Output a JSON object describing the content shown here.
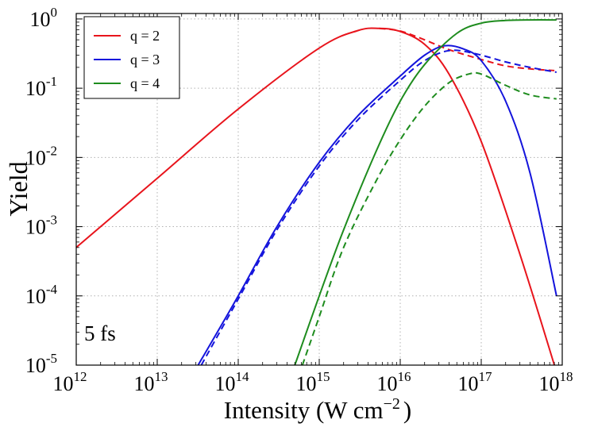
{
  "chart_data": {
    "type": "line",
    "xlabel": "Intensity (W cm",
    "xlabel_unit_exp": "−2",
    "xlabel_close": ")",
    "ylabel": "Yield",
    "x_scale": "log",
    "y_scale": "log",
    "xlim": [
      1000000000000.0,
      1e+18
    ],
    "ylim": [
      1e-05,
      1.2
    ],
    "grid": true,
    "legend_position": "top-left",
    "annotation": "5 fs",
    "x_ticks": [
      {
        "value": 1000000000000.0,
        "base": "10",
        "exp": "12"
      },
      {
        "value": 10000000000000.0,
        "base": "10",
        "exp": "13"
      },
      {
        "value": 100000000000000.0,
        "base": "10",
        "exp": "14"
      },
      {
        "value": 1000000000000000.0,
        "base": "10",
        "exp": "15"
      },
      {
        "value": 1e+16,
        "base": "10",
        "exp": "16"
      },
      {
        "value": 1e+17,
        "base": "10",
        "exp": "17"
      },
      {
        "value": 1e+18,
        "base": "10",
        "exp": "18"
      }
    ],
    "y_ticks": [
      {
        "value": 1e-05,
        "base": "10",
        "exp": "-5"
      },
      {
        "value": 0.0001,
        "base": "10",
        "exp": "-4"
      },
      {
        "value": 0.001,
        "base": "10",
        "exp": "-3"
      },
      {
        "value": 0.01,
        "base": "10",
        "exp": "-2"
      },
      {
        "value": 0.1,
        "base": "10",
        "exp": "-1"
      },
      {
        "value": 1,
        "base": "10",
        "exp": "0"
      }
    ],
    "series": [
      {
        "name": "q = 2",
        "color": "#e8141c",
        "style": "solid",
        "x": [
          1000000000000.0,
          10000000000000.0,
          100000000000000.0,
          1000000000000000.0,
          3000000000000000.0,
          5500000000000000.0,
          1e+16,
          2e+16,
          4e+16,
          1e+17,
          3e+17,
          8e+17
        ],
        "y": [
          0.0005,
          0.005,
          0.05,
          0.38,
          0.68,
          0.73,
          0.66,
          0.43,
          0.16,
          0.017,
          0.0004,
          1e-05
        ]
      },
      {
        "name": "",
        "color": "#e8141c",
        "style": "dashed",
        "x": [
          5500000000000000.0,
          1e+16,
          2e+16,
          4e+16,
          1e+17,
          2e+17,
          4e+17,
          8e+17
        ],
        "y": [
          0.73,
          0.67,
          0.5,
          0.36,
          0.26,
          0.21,
          0.19,
          0.18
        ]
      },
      {
        "name": "q = 3",
        "color": "#1414dc",
        "style": "solid",
        "x": [
          32000000000000.0,
          100000000000000.0,
          300000000000000.0,
          1000000000000000.0,
          3000000000000000.0,
          1e+16,
          2e+16,
          3.5e+16,
          6e+16,
          1e+17,
          2e+17,
          4e+17,
          8.5e+17
        ],
        "y": [
          1e-05,
          0.0001,
          0.001,
          0.0085,
          0.04,
          0.15,
          0.3,
          0.41,
          0.37,
          0.25,
          0.065,
          0.006,
          0.0001
        ]
      },
      {
        "name": "",
        "color": "#1414dc",
        "style": "dashed",
        "x": [
          35000000000000.0,
          100000000000000.0,
          300000000000000.0,
          1000000000000000.0,
          3000000000000000.0,
          1e+16,
          2e+16,
          4e+16,
          8e+16,
          2e+17,
          4e+17,
          8.5e+17
        ],
        "y": [
          1e-05,
          9e-05,
          0.0009,
          0.0075,
          0.035,
          0.13,
          0.25,
          0.35,
          0.32,
          0.24,
          0.2,
          0.17
        ]
      },
      {
        "name": "q = 4",
        "color": "#1e8c1e",
        "style": "solid",
        "x": [
          500000000000000.0,
          1000000000000000.0,
          2000000000000000.0,
          5000000000000000.0,
          1e+16,
          2e+16,
          5e+16,
          1e+17,
          2e+17,
          4e+17,
          8.5e+17
        ],
        "y": [
          1e-05,
          0.0001,
          0.0009,
          0.012,
          0.065,
          0.22,
          0.62,
          0.87,
          0.95,
          0.97,
          0.97
        ]
      },
      {
        "name": "",
        "color": "#1e8c1e",
        "style": "dashed",
        "x": [
          620000000000000.0,
          1000000000000000.0,
          2000000000000000.0,
          5000000000000000.0,
          1e+16,
          2e+16,
          4e+16,
          7e+16,
          1e+17,
          2e+17,
          4e+17,
          8.5e+17
        ],
        "y": [
          1e-05,
          5e-05,
          0.0005,
          0.0045,
          0.018,
          0.055,
          0.12,
          0.16,
          0.16,
          0.11,
          0.08,
          0.07
        ]
      }
    ]
  }
}
